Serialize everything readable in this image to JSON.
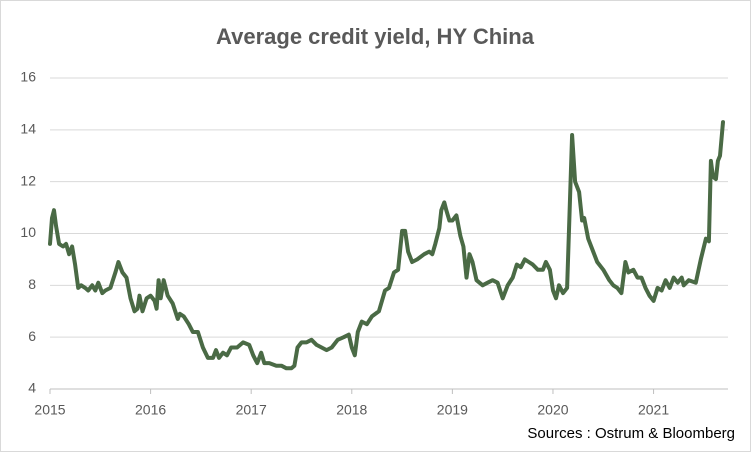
{
  "chart_data": {
    "type": "line",
    "title": "Average credit yield, HY China",
    "source": "Sources : Ostrum & Bloomberg",
    "color": "#4a6a45",
    "grid": true,
    "xlim": [
      2015,
      2021.74
    ],
    "xticks": [
      2015,
      2016,
      2017,
      2018,
      2019,
      2020,
      2021
    ],
    "ylim": [
      4,
      16
    ],
    "yticks": [
      4,
      6,
      8,
      10,
      12,
      14,
      16
    ],
    "x": [
      2015.0,
      2015.02,
      2015.04,
      2015.06,
      2015.09,
      2015.13,
      2015.16,
      2015.19,
      2015.22,
      2015.25,
      2015.28,
      2015.31,
      2015.35,
      2015.38,
      2015.42,
      2015.45,
      2015.48,
      2015.52,
      2015.55,
      2015.6,
      2015.65,
      2015.68,
      2015.72,
      2015.76,
      2015.8,
      2015.84,
      2015.87,
      2015.89,
      2015.92,
      2015.96,
      2016.0,
      2016.04,
      2016.06,
      2016.08,
      2016.1,
      2016.13,
      2016.17,
      2016.22,
      2016.27,
      2016.29,
      2016.33,
      2016.38,
      2016.42,
      2016.47,
      2016.52,
      2016.57,
      2016.62,
      2016.65,
      2016.68,
      2016.72,
      2016.76,
      2016.8,
      2016.86,
      2016.92,
      2016.98,
      2017.02,
      2017.06,
      2017.1,
      2017.13,
      2017.18,
      2017.25,
      2017.3,
      2017.35,
      2017.4,
      2017.43,
      2017.46,
      2017.5,
      2017.55,
      2017.6,
      2017.65,
      2017.7,
      2017.75,
      2017.8,
      2017.86,
      2017.92,
      2017.97,
      2018.0,
      2018.03,
      2018.06,
      2018.1,
      2018.15,
      2018.2,
      2018.27,
      2018.33,
      2018.37,
      2018.42,
      2018.46,
      2018.5,
      2018.53,
      2018.56,
      2018.6,
      2018.65,
      2018.72,
      2018.77,
      2018.8,
      2018.83,
      2018.87,
      2018.89,
      2018.92,
      2018.94,
      2018.97,
      2019.0,
      2019.04,
      2019.08,
      2019.11,
      2019.14,
      2019.17,
      2019.2,
      2019.24,
      2019.3,
      2019.35,
      2019.4,
      2019.45,
      2019.5,
      2019.55,
      2019.6,
      2019.64,
      2019.68,
      2019.72,
      2019.76,
      2019.8,
      2019.85,
      2019.9,
      2019.93,
      2019.97,
      2020.0,
      2020.03,
      2020.06,
      2020.1,
      2020.14,
      2020.19,
      2020.22,
      2020.26,
      2020.29,
      2020.31,
      2020.35,
      2020.4,
      2020.44,
      2020.5,
      2020.56,
      2020.6,
      2020.64,
      2020.68,
      2020.72,
      2020.75,
      2020.8,
      2020.84,
      2020.88,
      2020.92,
      2020.96,
      2021.0,
      2021.04,
      2021.08,
      2021.12,
      2021.16,
      2021.2,
      2021.24,
      2021.28,
      2021.3,
      2021.35,
      2021.42,
      2021.47,
      2021.52,
      2021.55,
      2021.57,
      2021.59,
      2021.62,
      2021.64,
      2021.66,
      2021.69
    ],
    "values": [
      9.6,
      10.6,
      10.9,
      10.3,
      9.6,
      9.5,
      9.6,
      9.2,
      9.5,
      8.8,
      7.9,
      8.0,
      7.9,
      7.8,
      8.0,
      7.8,
      8.1,
      7.7,
      7.8,
      7.9,
      8.5,
      8.9,
      8.5,
      8.3,
      7.5,
      7.0,
      7.1,
      7.6,
      7.0,
      7.5,
      7.6,
      7.4,
      7.1,
      8.2,
      7.5,
      8.2,
      7.6,
      7.3,
      6.7,
      6.9,
      6.8,
      6.5,
      6.2,
      6.2,
      5.6,
      5.2,
      5.2,
      5.5,
      5.2,
      5.4,
      5.3,
      5.6,
      5.6,
      5.8,
      5.7,
      5.3,
      5.0,
      5.4,
      5.0,
      5.0,
      4.9,
      4.9,
      4.8,
      4.8,
      4.9,
      5.6,
      5.8,
      5.8,
      5.9,
      5.7,
      5.6,
      5.5,
      5.6,
      5.9,
      6.0,
      6.1,
      5.6,
      5.3,
      6.2,
      6.6,
      6.5,
      6.8,
      7.0,
      7.8,
      7.9,
      8.5,
      8.6,
      10.1,
      10.1,
      9.3,
      8.9,
      9.0,
      9.2,
      9.3,
      9.2,
      9.6,
      10.2,
      10.9,
      11.2,
      10.9,
      10.5,
      10.5,
      10.7,
      9.9,
      9.5,
      8.3,
      9.2,
      8.9,
      8.2,
      8.0,
      8.1,
      8.2,
      8.1,
      7.5,
      8.0,
      8.3,
      8.8,
      8.7,
      9.0,
      8.9,
      8.8,
      8.6,
      8.6,
      8.9,
      8.6,
      7.8,
      7.5,
      8.0,
      7.7,
      7.9,
      13.8,
      12.0,
      11.6,
      10.5,
      10.6,
      9.8,
      9.3,
      8.9,
      8.6,
      8.2,
      8.0,
      7.9,
      7.7,
      8.9,
      8.5,
      8.6,
      8.3,
      8.3,
      7.9,
      7.6,
      7.4,
      7.9,
      7.8,
      8.2,
      7.9,
      8.3,
      8.1,
      8.3,
      8.0,
      8.2,
      8.1,
      9.0,
      9.8,
      9.7,
      12.8,
      12.2,
      12.1,
      12.8,
      13.0,
      14.3
    ]
  }
}
